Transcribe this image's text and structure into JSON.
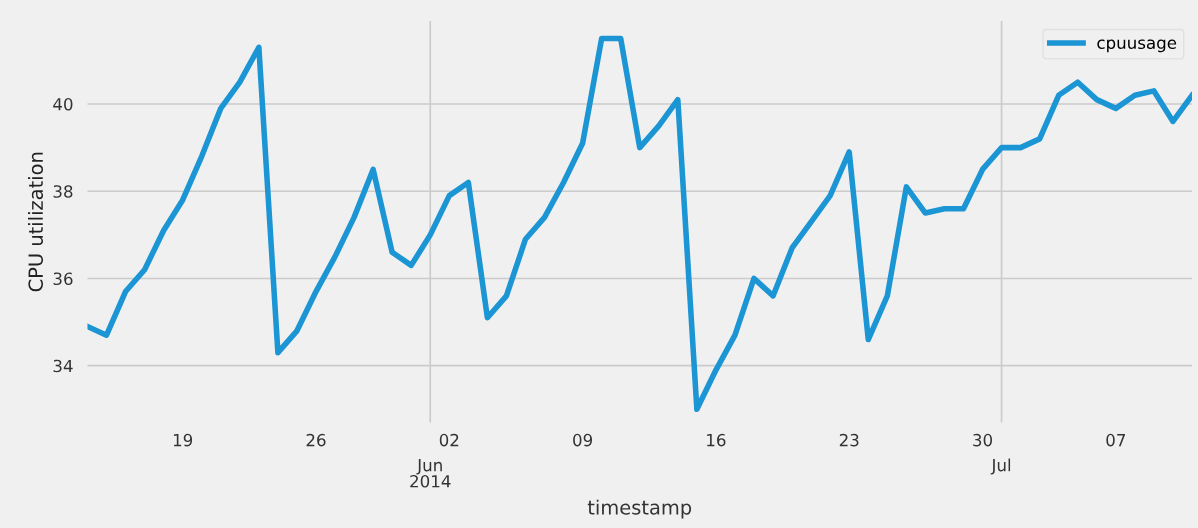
{
  "chart_data": {
    "type": "line",
    "xlabel": "timestamp",
    "ylabel": "CPU utilization",
    "x": [
      "2014-05-14",
      "2014-05-15",
      "2014-05-16",
      "2014-05-17",
      "2014-05-18",
      "2014-05-19",
      "2014-05-20",
      "2014-05-21",
      "2014-05-22",
      "2014-05-23",
      "2014-05-24",
      "2014-05-25",
      "2014-05-26",
      "2014-05-27",
      "2014-05-28",
      "2014-05-29",
      "2014-05-30",
      "2014-05-31",
      "2014-06-01",
      "2014-06-02",
      "2014-06-03",
      "2014-06-04",
      "2014-06-05",
      "2014-06-06",
      "2014-06-07",
      "2014-06-08",
      "2014-06-09",
      "2014-06-10",
      "2014-06-11",
      "2014-06-12",
      "2014-06-13",
      "2014-06-14",
      "2014-06-15",
      "2014-06-16",
      "2014-06-17",
      "2014-06-18",
      "2014-06-19",
      "2014-06-20",
      "2014-06-21",
      "2014-06-22",
      "2014-06-23",
      "2014-06-24",
      "2014-06-25",
      "2014-06-26",
      "2014-06-27",
      "2014-06-28",
      "2014-06-29",
      "2014-06-30",
      "2014-07-01",
      "2014-07-02",
      "2014-07-03",
      "2014-07-04",
      "2014-07-05",
      "2014-07-06",
      "2014-07-07",
      "2014-07-08",
      "2014-07-09",
      "2014-07-10",
      "2014-07-11"
    ],
    "series": [
      {
        "name": "cpuusage",
        "color": "#1b95d4",
        "values": [
          34.9,
          34.7,
          35.7,
          36.2,
          37.1,
          37.8,
          38.8,
          39.9,
          40.5,
          41.3,
          34.3,
          34.8,
          35.7,
          36.5,
          37.4,
          38.5,
          36.6,
          36.3,
          37.0,
          37.9,
          38.2,
          35.1,
          35.6,
          36.9,
          37.4,
          38.2,
          39.1,
          41.5,
          41.5,
          39.0,
          39.5,
          40.1,
          33.0,
          33.9,
          34.7,
          36.0,
          35.6,
          36.7,
          37.3,
          37.9,
          38.9,
          34.6,
          35.6,
          38.1,
          37.5,
          37.6,
          37.6,
          38.5,
          39.0,
          39.0,
          39.2,
          40.2,
          40.5,
          40.1,
          39.9,
          40.2,
          40.3,
          39.6,
          40.2
        ]
      }
    ],
    "xlim": [
      "2014-05-14",
      "2014-07-11"
    ],
    "xticks": [
      {
        "value": "2014-05-19",
        "label": "19"
      },
      {
        "value": "2014-05-26",
        "label": "26"
      },
      {
        "value": "2014-06-02",
        "label": "02"
      },
      {
        "value": "2014-06-09",
        "label": "09"
      },
      {
        "value": "2014-06-16",
        "label": "16"
      },
      {
        "value": "2014-06-23",
        "label": "23"
      },
      {
        "value": "2014-06-30",
        "label": "30"
      },
      {
        "value": "2014-07-07",
        "label": "07"
      }
    ],
    "ylim": [
      32.7,
      41.9
    ],
    "yticks": [
      34,
      36,
      38,
      40
    ],
    "grid": "y",
    "ref_lines": [
      {
        "axis": "x",
        "value": "2014-06-01",
        "label": "Jun\n2014",
        "color": "#cbcbcb"
      },
      {
        "axis": "x",
        "value": "2014-07-01",
        "label": "Jul",
        "color": "#cbcbcb"
      }
    ],
    "legend": "top right",
    "marker": "none",
    "line_style": "solid"
  }
}
